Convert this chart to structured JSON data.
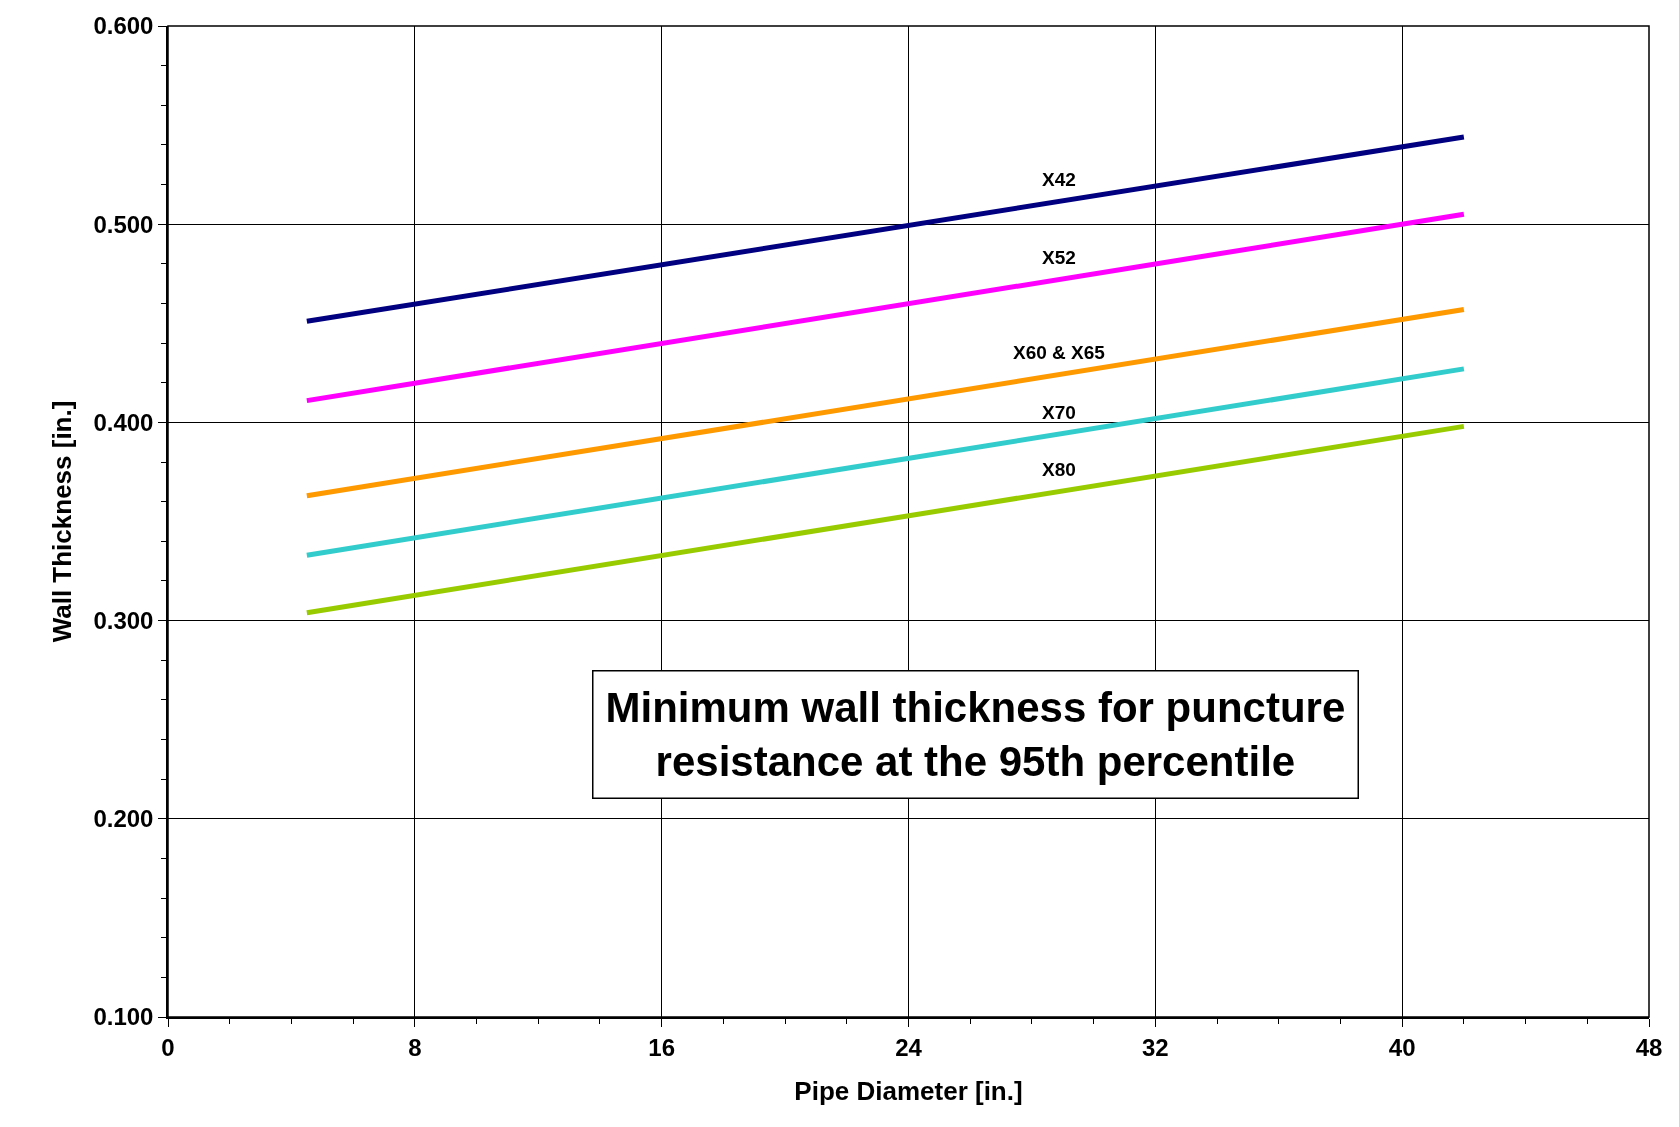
{
  "chart_data": {
    "type": "line",
    "xlabel": "Pipe Diameter [in.]",
    "ylabel": "Wall Thickness [in.]",
    "xlim": [
      0,
      48
    ],
    "xticks": [
      0,
      8,
      16,
      24,
      32,
      40,
      48
    ],
    "ylim": [
      0.1,
      0.6
    ],
    "yticks": [
      {
        "value": 0.1,
        "label": "0.100"
      },
      {
        "value": 0.2,
        "label": "0.200"
      },
      {
        "value": 0.3,
        "label": "0.300"
      },
      {
        "value": 0.4,
        "label": "0.400"
      },
      {
        "value": 0.5,
        "label": "0.500"
      },
      {
        "value": 0.6,
        "label": "0.600"
      }
    ],
    "x": [
      4.5,
      42
    ],
    "grid": true,
    "legend": false,
    "marker": "none",
    "line_style": "solid",
    "series": [
      {
        "name": "X42",
        "color": "#000080",
        "values": [
          0.451,
          0.544
        ]
      },
      {
        "name": "X52",
        "color": "#ff00ff",
        "values": [
          0.411,
          0.505
        ]
      },
      {
        "name": "X60 & X65",
        "color": "#ff9900",
        "values": [
          0.363,
          0.457
        ]
      },
      {
        "name": "X70",
        "color": "#33cccc",
        "values": [
          0.333,
          0.427
        ]
      },
      {
        "name": "X80",
        "color": "#99cc00",
        "values": [
          0.304,
          0.398
        ]
      }
    ],
    "annotations": [
      "Minimum wall thickness for puncture resistance at the 95th percentile"
    ]
  }
}
